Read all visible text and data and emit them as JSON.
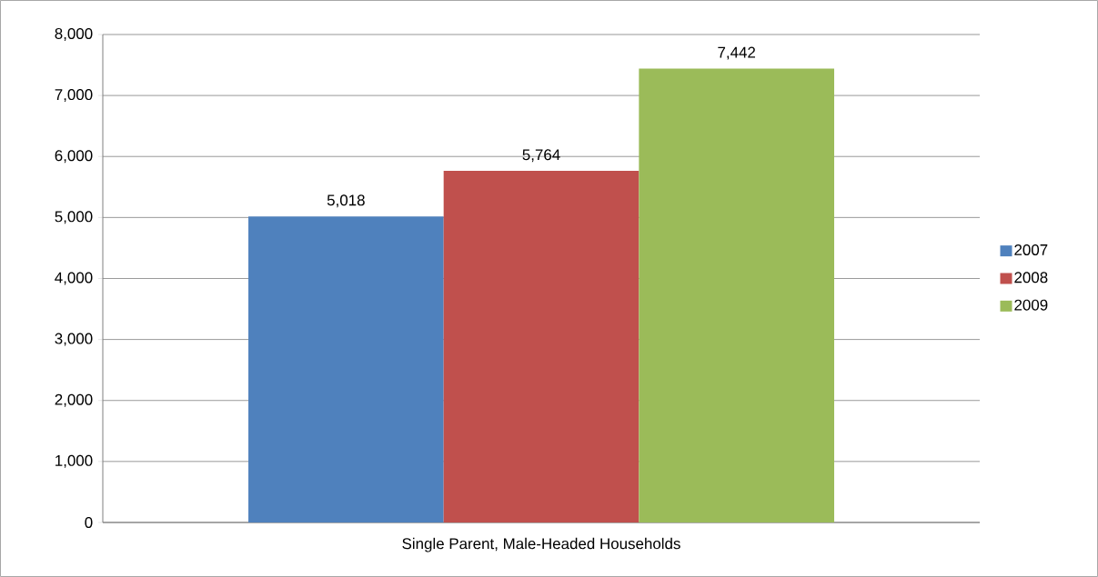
{
  "chart_data": {
    "type": "bar",
    "categories": [
      "Single Parent, Male-Headed Households"
    ],
    "series": [
      {
        "name": "2007",
        "color": "#4f81bd",
        "values": [
          5018
        ],
        "value_labels": [
          "5,018"
        ]
      },
      {
        "name": "2008",
        "color": "#c0504d",
        "values": [
          5764
        ],
        "value_labels": [
          "5,764"
        ]
      },
      {
        "name": "2009",
        "color": "#9bbb59",
        "values": [
          7442
        ],
        "value_labels": [
          "7,442"
        ]
      }
    ],
    "ylim": [
      0,
      8000
    ],
    "yticks": [
      0,
      {
        "value": 1000,
        "label": "1,000"
      },
      {
        "value": 2000,
        "label": "2,000"
      },
      {
        "value": 3000,
        "label": "3,000"
      },
      {
        "value": 4000,
        "label": "4,000"
      },
      {
        "value": 5000,
        "label": "5,000"
      },
      {
        "value": 6000,
        "label": "6,000"
      },
      {
        "value": 7000,
        "label": "7,000"
      },
      {
        "value": 8000,
        "label": "8,000"
      }
    ],
    "grid": "y",
    "legend": "right"
  }
}
